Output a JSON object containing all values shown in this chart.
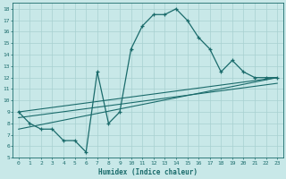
{
  "xlabel": "Humidex (Indice chaleur)",
  "bg_color": "#c8e8e8",
  "line_color": "#1a6b6b",
  "grid_color": "#a8d0d0",
  "xlim": [
    -0.5,
    23.5
  ],
  "ylim": [
    5,
    18.5
  ],
  "xticks": [
    0,
    1,
    2,
    3,
    4,
    5,
    6,
    7,
    8,
    9,
    10,
    11,
    12,
    13,
    14,
    15,
    16,
    17,
    18,
    19,
    20,
    21,
    22,
    23
  ],
  "yticks": [
    5,
    6,
    7,
    8,
    9,
    10,
    11,
    12,
    13,
    14,
    15,
    16,
    17,
    18
  ],
  "main_curve_x": [
    0,
    1,
    2,
    3,
    4,
    5,
    6,
    7,
    8,
    9,
    10,
    11,
    12,
    13,
    14,
    15,
    16,
    17,
    18,
    19,
    20,
    21,
    22,
    23
  ],
  "main_curve_y": [
    9.0,
    8.0,
    7.5,
    7.5,
    6.5,
    6.5,
    5.5,
    12.5,
    8.0,
    9.0,
    14.5,
    16.5,
    17.5,
    17.5,
    18.0,
    17.0,
    15.5,
    14.5,
    12.5,
    13.5,
    12.5,
    12.0,
    12.0,
    12.0
  ],
  "line1_x": [
    0,
    23
  ],
  "line1_y": [
    9.0,
    12.0
  ],
  "line2_x": [
    0,
    23
  ],
  "line2_y": [
    8.5,
    11.5
  ],
  "line3_x": [
    0,
    23
  ],
  "line3_y": [
    7.5,
    12.0
  ]
}
